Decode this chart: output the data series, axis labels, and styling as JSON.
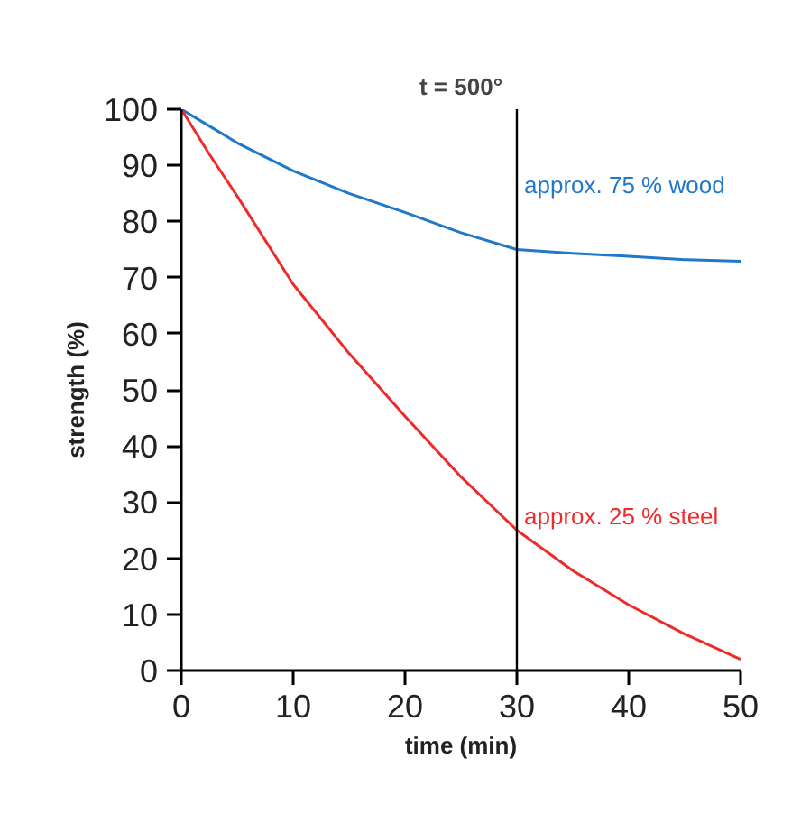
{
  "chart_data": {
    "type": "line",
    "title": "t = 500°",
    "xlabel": "time (min)",
    "ylabel": "strength (%)",
    "x": [
      0,
      2.5,
      5,
      10,
      15,
      20,
      25,
      30,
      35,
      40,
      45,
      50
    ],
    "series": [
      {
        "color": "#1f78c8",
        "values": [
          100,
          97,
          94,
          89,
          85,
          81.6,
          78,
          75,
          74.3,
          73.8,
          73.2,
          72.9
        ]
      },
      {
        "color": "#ee2a2a",
        "values": [
          100,
          92,
          84.5,
          68.8,
          56.5,
          45.3,
          34.5,
          25,
          17.8,
          11.7,
          6.5,
          2
        ]
      }
    ],
    "xlim": [
      0,
      50
    ],
    "ylim": [
      0,
      100
    ],
    "xticks": [
      0,
      10,
      20,
      30,
      40,
      50
    ],
    "yticks": [
      0,
      10,
      20,
      30,
      40,
      50,
      60,
      70,
      80,
      90,
      100
    ],
    "ref_lines": [
      {
        "axis": "x",
        "value": 30,
        "color": "#000000"
      }
    ],
    "annotations": [
      "approx. 75 % wood",
      "approx. 25 % steel"
    ],
    "grid": false,
    "marker": "none",
    "line_style": "solid"
  }
}
